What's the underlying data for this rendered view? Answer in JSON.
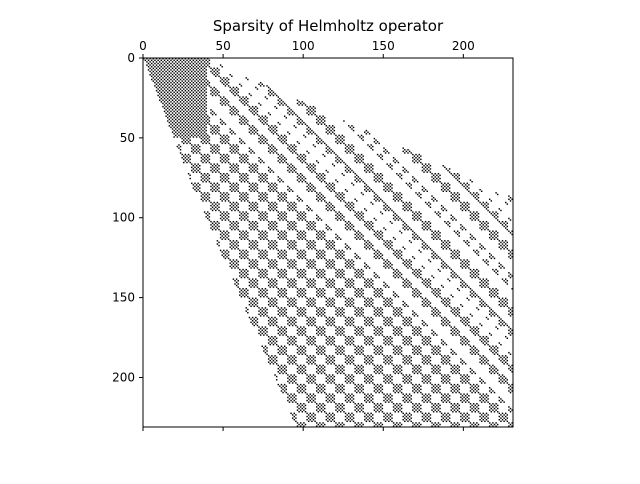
{
  "chart_data": {
    "type": "heatmap",
    "title": "Sparsity of Helmholtz operator",
    "xlabel": "",
    "ylabel": "",
    "n": 231,
    "xlim": [
      0,
      231
    ],
    "ylim": [
      231,
      0
    ],
    "x_ticks": [
      0,
      50,
      100,
      150,
      200
    ],
    "y_ticks": [
      0,
      50,
      100,
      150,
      200
    ],
    "x_tick_position": "top",
    "grid": false,
    "marker_color": "#000000",
    "pattern": {
      "description_of_structure": "upper-triangular banded sparsity; nonzeros arranged in diagonal blocks",
      "block_size": 6,
      "dense_corner_rows": 50,
      "dense_corner_cols": 40
    }
  }
}
